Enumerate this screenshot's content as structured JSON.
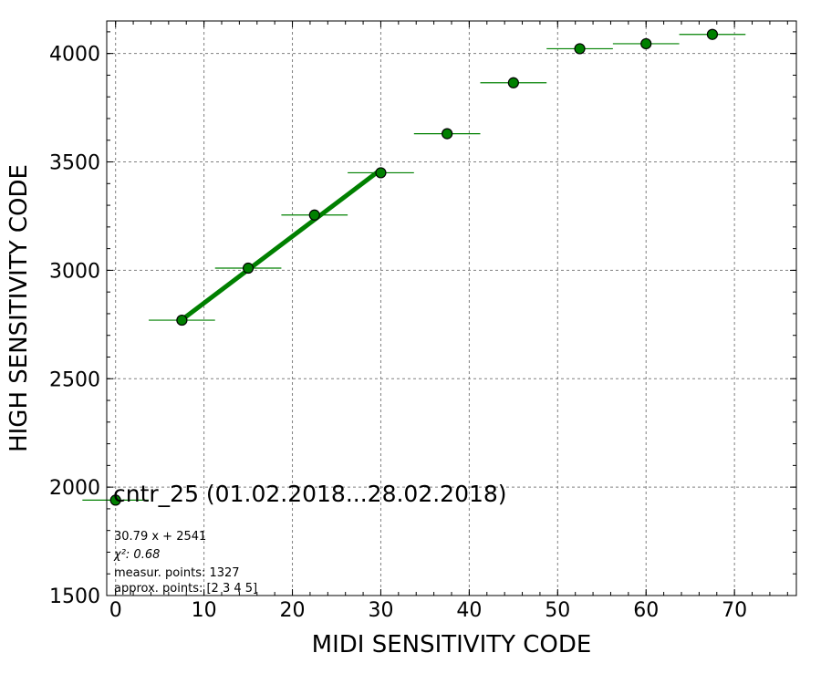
{
  "chart_data": {
    "type": "scatter",
    "xlabel": "MIDI SENSITIVITY CODE",
    "ylabel": "HIGH SENSITIVITY CODE",
    "xlim": [
      -1,
      77
    ],
    "ylim": [
      1500,
      4150
    ],
    "xticks": [
      0,
      10,
      20,
      30,
      40,
      50,
      60,
      70
    ],
    "yticks": [
      1500,
      2000,
      2500,
      3000,
      3500,
      4000
    ],
    "x_minor_step": 2,
    "y_minor_step": 100,
    "grid": true,
    "series": [
      {
        "points": [
          {
            "x": 0,
            "y": 1940,
            "xerr": 3.75,
            "yerr": 5
          },
          {
            "x": 7.5,
            "y": 2770,
            "xerr": 3.75,
            "yerr": 8
          },
          {
            "x": 15,
            "y": 3010,
            "xerr": 3.75,
            "yerr": 10
          },
          {
            "x": 22.5,
            "y": 3255,
            "xerr": 3.75,
            "yerr": 20
          },
          {
            "x": 30,
            "y": 3450,
            "xerr": 3.75,
            "yerr": 15
          },
          {
            "x": 37.5,
            "y": 3630,
            "xerr": 3.75,
            "yerr": 10
          },
          {
            "x": 45,
            "y": 3865,
            "xerr": 3.75,
            "yerr": 25
          },
          {
            "x": 52.5,
            "y": 4022,
            "xerr": 3.75,
            "yerr": 8
          },
          {
            "x": 60,
            "y": 4045,
            "xerr": 3.75,
            "yerr": 8
          },
          {
            "x": 67.5,
            "y": 4088,
            "xerr": 3.75,
            "yerr": 8
          }
        ],
        "marker_color": "#008000",
        "marker_edge": "#000000"
      }
    ],
    "fit_line": {
      "slope": 30.79,
      "intercept": 2541,
      "x_range": [
        7.5,
        30
      ],
      "color": "#008000"
    },
    "annotation_title": "cntr_25 (01.02.2018...28.02.2018)",
    "annotations": [
      "30.79 x + 2541",
      "χ²: 0.68",
      "measur. points: 1327",
      "approx. points: [2 3 4 5]"
    ]
  }
}
